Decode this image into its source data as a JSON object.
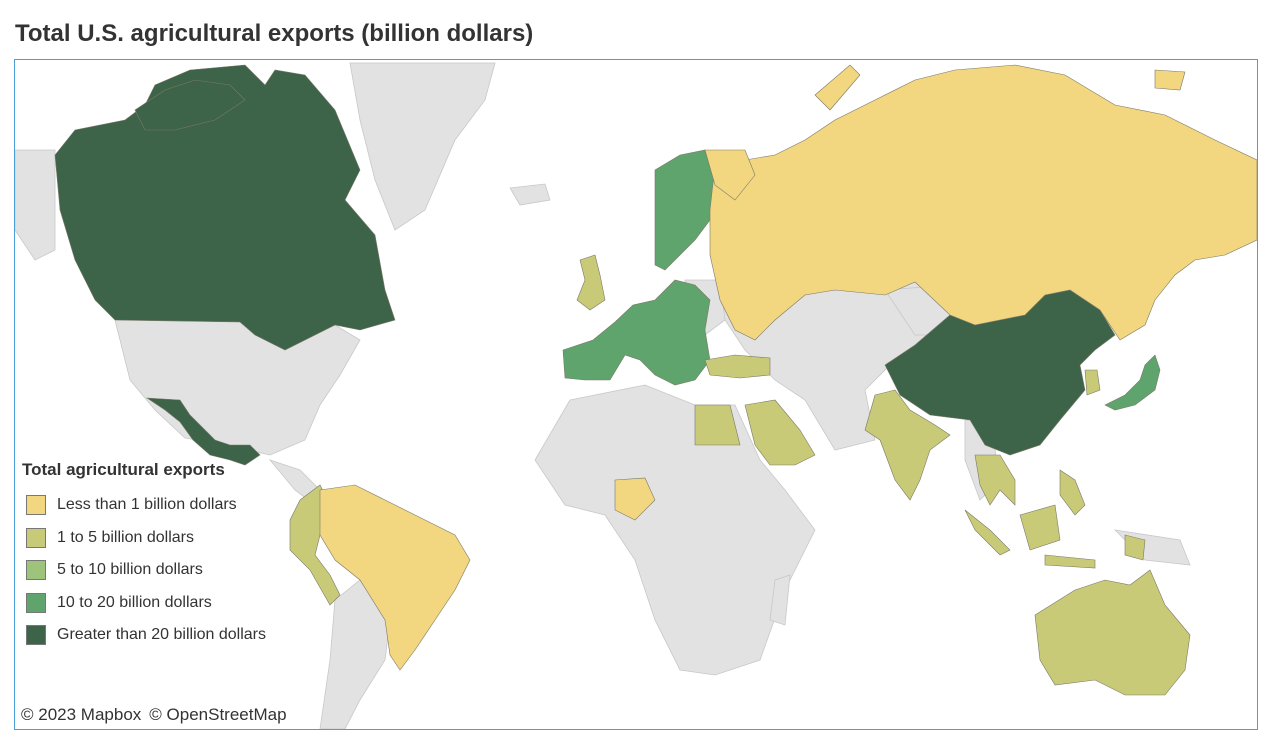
{
  "title": "Total U.S. agricultural exports (billion dollars)",
  "map": {
    "colors": {
      "land": "#e2e2e2",
      "border": "#c8c8c8",
      "water": "#ffffff",
      "frame": "#4a9fd8"
    },
    "legend": {
      "title": "Total agricultural exports",
      "items": [
        {
          "label": "Less than 1 billion dollars",
          "color": "#f2d680"
        },
        {
          "label": "1 to 5 billion dollars",
          "color": "#c9ca78"
        },
        {
          "label": "5 to 10 billion dollars",
          "color": "#9dc47a"
        },
        {
          "label": "10 to 20 billion dollars",
          "color": "#5ea46c"
        },
        {
          "label": "Greater than 20 billion dollars",
          "color": "#3d6348"
        }
      ]
    },
    "regions": [
      {
        "name": "Canada",
        "category": 4
      },
      {
        "name": "Mexico",
        "category": 4
      },
      {
        "name": "China",
        "category": 4
      },
      {
        "name": "European Union",
        "category": 3
      },
      {
        "name": "Sweden",
        "category": 3
      },
      {
        "name": "Finland",
        "category": 3
      },
      {
        "name": "Japan",
        "category": 3
      },
      {
        "name": "United Kingdom",
        "category": 1
      },
      {
        "name": "South Korea",
        "category": 1
      },
      {
        "name": "Turkey",
        "category": 1
      },
      {
        "name": "Egypt",
        "category": 1
      },
      {
        "name": "Saudi Arabia",
        "category": 1
      },
      {
        "name": "India",
        "category": 1
      },
      {
        "name": "Vietnam",
        "category": 1
      },
      {
        "name": "Thailand",
        "category": 1
      },
      {
        "name": "Philippines",
        "category": 1
      },
      {
        "name": "Indonesia",
        "category": 1
      },
      {
        "name": "Malaysia",
        "category": 1
      },
      {
        "name": "Australia",
        "category": 1
      },
      {
        "name": "Colombia",
        "category": 1
      },
      {
        "name": "Peru",
        "category": 1
      },
      {
        "name": "Ecuador",
        "category": 1
      },
      {
        "name": "Russia",
        "category": 0
      },
      {
        "name": "Brazil",
        "category": 0
      },
      {
        "name": "Venezuela",
        "category": 0
      },
      {
        "name": "Nigeria",
        "category": 0
      },
      {
        "name": "Norway",
        "category": 0
      }
    ],
    "attribution": [
      "© 2023 Mapbox",
      "© OpenStreetMap"
    ]
  }
}
